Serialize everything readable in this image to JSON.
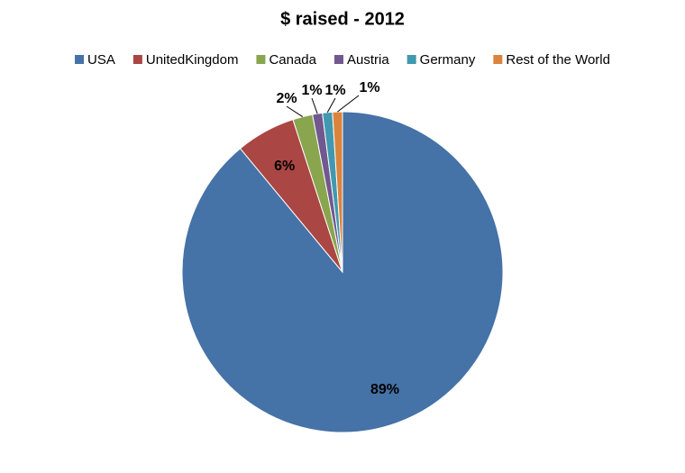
{
  "chart_data": {
    "type": "pie",
    "title": "$ raised - 2012",
    "categories": [
      "USA",
      "UnitedKingdom",
      "Canada",
      "Austria",
      "Germany",
      "Rest of the World"
    ],
    "values": [
      89,
      6,
      2,
      1,
      1,
      1
    ],
    "value_labels": [
      "89%",
      "6%",
      "2%",
      "1%",
      "1%",
      "1%"
    ],
    "colors": [
      "#4572a7",
      "#aa4643",
      "#89a54e",
      "#71588f",
      "#4198af",
      "#db843d"
    ],
    "legend": "top"
  }
}
